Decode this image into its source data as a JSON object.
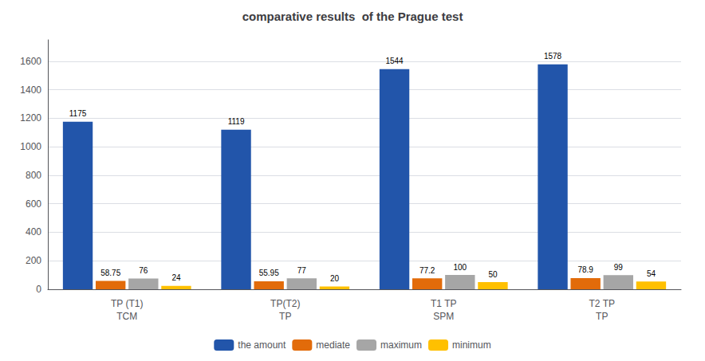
{
  "chart_data": {
    "type": "bar",
    "title": "comparative results  of the Prague test",
    "categories": [
      "TP (T1)\nTCM",
      "TP(T2)\nTP",
      "T1 TP\nSPM",
      "T2 TP\nTP"
    ],
    "series": [
      {
        "name": "the amount",
        "color": "#2255aa",
        "values": [
          1175,
          1119,
          1544,
          1578
        ]
      },
      {
        "name": "mediate",
        "color": "#e26b0a",
        "values": [
          58.75,
          55.95,
          77.2,
          78.9
        ]
      },
      {
        "name": "maximum",
        "color": "#a6a6a6",
        "values": [
          76,
          77,
          100,
          99
        ]
      },
      {
        "name": "minimum",
        "color": "#ffc000",
        "values": [
          24,
          20,
          50,
          54
        ]
      }
    ],
    "ylim": [
      0,
      1750
    ],
    "yticks": [
      0,
      200,
      400,
      600,
      800,
      1000,
      1200,
      1400,
      1600
    ],
    "grid": true,
    "legend": "bottom",
    "data_labels": true
  }
}
